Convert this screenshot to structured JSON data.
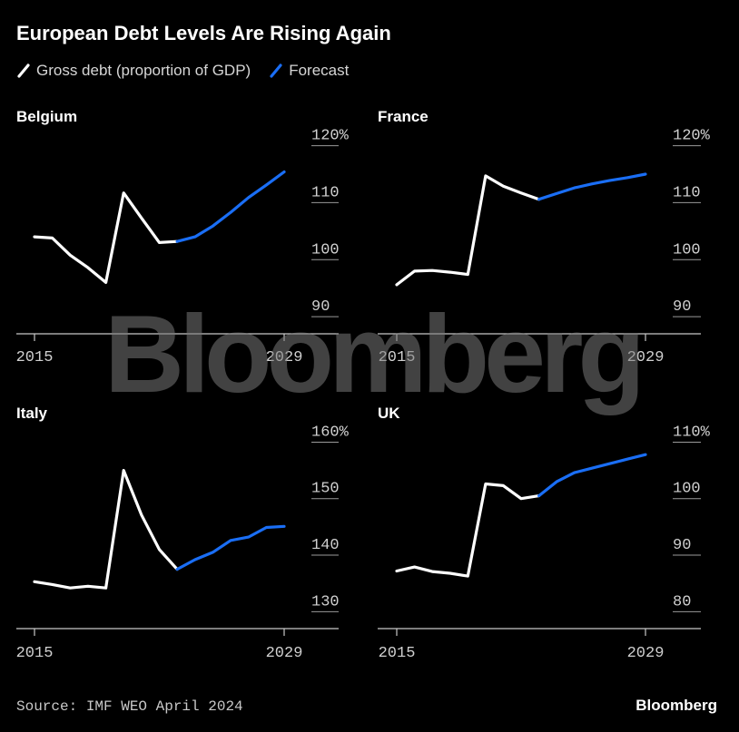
{
  "title": "European Debt Levels Are Rising Again",
  "legend": {
    "actual": "Gross debt (proportion of GDP)",
    "forecast": "Forecast"
  },
  "colors": {
    "background": "#000000",
    "actual": "#ffffff",
    "forecast": "#1a6ef5",
    "grid": "#9a9a9a",
    "tick_text": "#d0d0d0"
  },
  "watermark": "Bloomberg",
  "source": "Source: IMF WEO April 2024",
  "brand": "Bloomberg",
  "chart_data": [
    {
      "type": "line",
      "title": "Belgium",
      "x": [
        2015,
        2016,
        2017,
        2018,
        2019,
        2020,
        2021,
        2022,
        2023,
        2024,
        2025,
        2026,
        2027,
        2028,
        2029
      ],
      "series": [
        {
          "name": "Gross debt (proportion of GDP)",
          "x": [
            2015,
            2016,
            2017,
            2018,
            2019,
            2020,
            2021,
            2022,
            2023
          ],
          "values": [
            104.0,
            103.8,
            100.8,
            98.6,
            96.0,
            111.7,
            107.3,
            103.0,
            103.2
          ]
        },
        {
          "name": "Forecast",
          "x": [
            2023,
            2024,
            2025,
            2026,
            2027,
            2028,
            2029
          ],
          "values": [
            103.2,
            104.0,
            105.9,
            108.3,
            110.9,
            113.1,
            115.4
          ]
        }
      ],
      "ylim": [
        87,
        122
      ],
      "yticks": [
        90,
        100,
        110,
        120
      ],
      "ytick_labels": [
        "90",
        "100",
        "110",
        "120%"
      ],
      "xtick_labels": [
        "2015",
        "2029"
      ]
    },
    {
      "type": "line",
      "title": "France",
      "x": [
        2015,
        2016,
        2017,
        2018,
        2019,
        2020,
        2021,
        2022,
        2023,
        2024,
        2025,
        2026,
        2027,
        2028,
        2029
      ],
      "series": [
        {
          "name": "Gross debt (proportion of GDP)",
          "x": [
            2015,
            2016,
            2017,
            2018,
            2019,
            2020,
            2021,
            2022,
            2023
          ],
          "values": [
            95.6,
            98.0,
            98.1,
            97.8,
            97.4,
            114.7,
            112.9,
            111.7,
            110.6
          ]
        },
        {
          "name": "Forecast",
          "x": [
            2023,
            2024,
            2025,
            2026,
            2027,
            2028,
            2029
          ],
          "values": [
            110.6,
            111.6,
            112.6,
            113.3,
            113.9,
            114.4,
            115.0
          ]
        }
      ],
      "ylim": [
        87,
        122
      ],
      "yticks": [
        90,
        100,
        110,
        120
      ],
      "ytick_labels": [
        "90",
        "100",
        "110",
        "120%"
      ],
      "xtick_labels": [
        "2015",
        "2029"
      ]
    },
    {
      "type": "line",
      "title": "Italy",
      "x": [
        2015,
        2016,
        2017,
        2018,
        2019,
        2020,
        2021,
        2022,
        2023,
        2024,
        2025,
        2026,
        2027,
        2028,
        2029
      ],
      "series": [
        {
          "name": "Gross debt (proportion of GDP)",
          "x": [
            2015,
            2016,
            2017,
            2018,
            2019,
            2020,
            2021,
            2022,
            2023
          ],
          "values": [
            135.3,
            134.8,
            134.2,
            134.5,
            134.2,
            155.0,
            147.1,
            141.0,
            137.5
          ]
        },
        {
          "name": "Forecast",
          "x": [
            2023,
            2024,
            2025,
            2026,
            2027,
            2028,
            2029
          ],
          "values": [
            137.5,
            139.2,
            140.5,
            142.6,
            143.2,
            144.9,
            145.1
          ]
        }
      ],
      "ylim": [
        127,
        162
      ],
      "yticks": [
        130,
        140,
        150,
        160
      ],
      "ytick_labels": [
        "130",
        "140",
        "150",
        "160%"
      ],
      "xtick_labels": [
        "2015",
        "2029"
      ]
    },
    {
      "type": "line",
      "title": "UK",
      "x": [
        2015,
        2016,
        2017,
        2018,
        2019,
        2020,
        2021,
        2022,
        2023,
        2024,
        2025,
        2026,
        2027,
        2028,
        2029
      ],
      "series": [
        {
          "name": "Gross debt (proportion of GDP)",
          "x": [
            2015,
            2016,
            2017,
            2018,
            2019,
            2020,
            2021,
            2022,
            2023
          ],
          "values": [
            87.2,
            87.9,
            87.1,
            86.8,
            86.3,
            102.6,
            102.3,
            100.0,
            100.5
          ]
        },
        {
          "name": "Forecast",
          "x": [
            2023,
            2024,
            2025,
            2026,
            2027,
            2028,
            2029
          ],
          "values": [
            100.5,
            103.0,
            104.6,
            105.4,
            106.2,
            107.0,
            107.8
          ]
        }
      ],
      "ylim": [
        77,
        112
      ],
      "yticks": [
        80,
        90,
        100,
        110
      ],
      "ytick_labels": [
        "80",
        "90",
        "100",
        "110%"
      ],
      "xtick_labels": [
        "2015",
        "2029"
      ]
    }
  ]
}
